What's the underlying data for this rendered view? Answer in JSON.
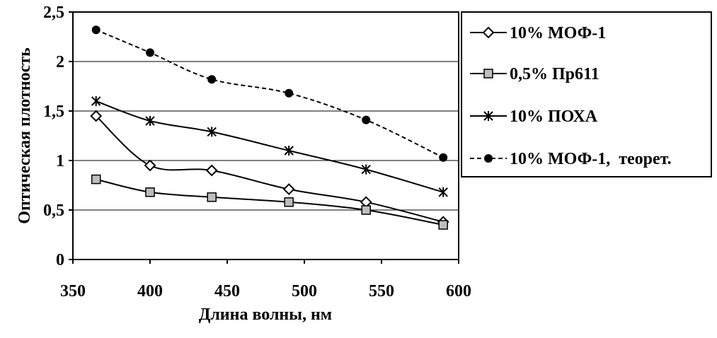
{
  "chart_data": {
    "type": "line",
    "xlabel": "Длина волны, нм",
    "ylabel": "Оптическая плотность",
    "xlim": [
      350,
      600
    ],
    "ylim": [
      0,
      2.5
    ],
    "x_ticks": [
      "350",
      "400",
      "450",
      "500",
      "550",
      "600"
    ],
    "y_ticks": [
      "0",
      "0,5",
      "1",
      "1,5",
      "2",
      "2,5"
    ],
    "grid": "horizontal",
    "legend_position": "right",
    "x": [
      365,
      400,
      440,
      490,
      540,
      590
    ],
    "series": [
      {
        "name": "10% МОФ-1",
        "values": [
          1.45,
          0.95,
          0.9,
          0.71,
          0.58,
          0.38
        ],
        "marker": "diamond-open",
        "line": "solid-smooth"
      },
      {
        "name": "0,5% Пр611",
        "values": [
          0.81,
          0.68,
          0.63,
          0.58,
          0.5,
          0.35
        ],
        "marker": "square-gray",
        "line": "solid"
      },
      {
        "name": "10% ПОХА",
        "values": [
          1.6,
          1.4,
          1.29,
          1.1,
          0.91,
          0.68
        ],
        "marker": "star",
        "line": "solid"
      },
      {
        "name": "10% МОФ-1,  теорет.",
        "values": [
          2.32,
          2.09,
          1.82,
          1.68,
          1.41,
          1.03
        ],
        "marker": "circle-filled",
        "line": "dashed"
      }
    ]
  }
}
